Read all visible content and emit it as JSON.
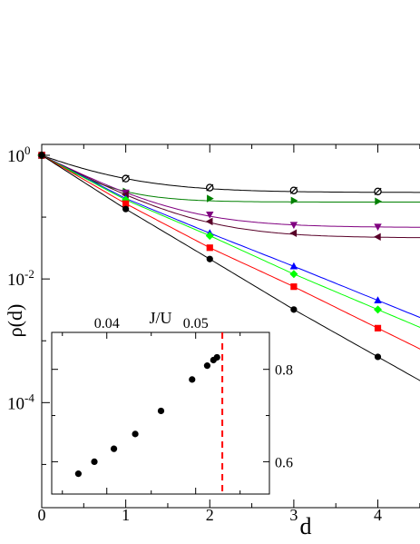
{
  "chart_data": [
    {
      "type": "line",
      "title": "",
      "xlabel": "d",
      "ylabel": "ρ(d)",
      "xscale": "linear",
      "yscale": "log",
      "xlim": [
        0,
        4.75
      ],
      "ylim": [
        2e-06,
        1.5
      ],
      "xticks": [
        0,
        1,
        2,
        3,
        4
      ],
      "xtick_labels": [
        "0",
        "1",
        "2",
        "3",
        "4"
      ],
      "yticks": [
        1,
        0.01,
        0.0001
      ],
      "ytick_labels": [
        {
          "base": "10",
          "exp": "0"
        },
        {
          "base": "10",
          "exp": "-2"
        },
        {
          "base": "10",
          "exp": "-4"
        }
      ],
      "grid": false,
      "legend": "none",
      "series": [
        {
          "color": "#000000",
          "marker": "circle-open-slash",
          "x": [
            0,
            1,
            2,
            3,
            4
          ],
          "y": [
            1,
            0.42,
            0.3,
            0.27,
            0.26
          ],
          "asymptote": 0.25
        },
        {
          "color": "#008000",
          "marker": "triangle-right",
          "x": [
            0,
            1,
            2,
            3,
            4
          ],
          "y": [
            1,
            0.26,
            0.2,
            0.185,
            0.18
          ],
          "asymptote": 0.175
        },
        {
          "color": "#800080",
          "marker": "triangle-down",
          "x": [
            0,
            1,
            2,
            3,
            4
          ],
          "y": [
            1,
            0.25,
            0.11,
            0.075,
            0.07
          ],
          "asymptote": 0.068
        },
        {
          "color": "#580028",
          "marker": "triangle-left",
          "x": [
            0,
            1,
            2,
            3,
            4
          ],
          "y": [
            1,
            0.23,
            0.085,
            0.055,
            0.048
          ],
          "asymptote": 0.046
        },
        {
          "color": "#0000ff",
          "marker": "triangle-up",
          "x": [
            0,
            1,
            2,
            3,
            4
          ],
          "y": [
            1,
            0.2,
            0.055,
            0.016,
            0.0045
          ],
          "asymptote": null
        },
        {
          "color": "#00ff00",
          "marker": "diamond",
          "x": [
            0,
            1,
            2,
            3,
            4
          ],
          "y": [
            1,
            0.19,
            0.05,
            0.012,
            0.0032
          ],
          "asymptote": null
        },
        {
          "color": "#ff0000",
          "marker": "square",
          "x": [
            0,
            1,
            2,
            3,
            4
          ],
          "y": [
            1,
            0.165,
            0.032,
            0.0075,
            0.0016
          ],
          "asymptote": null
        },
        {
          "color": "#000000",
          "marker": "circle",
          "x": [
            0,
            1,
            2,
            3,
            4
          ],
          "y": [
            1,
            0.135,
            0.021,
            0.0032,
            0.00055
          ],
          "asymptote": null
        }
      ]
    },
    {
      "type": "scatter",
      "title": "",
      "xlabel": "J/U",
      "ylabel": "",
      "xlim": [
        0.0338,
        0.0583
      ],
      "ylim": [
        0.53,
        0.88
      ],
      "xticks": [
        0.04,
        0.05
      ],
      "xtick_labels": [
        "0.04",
        "0.05"
      ],
      "yticks": [
        0.6,
        0.8
      ],
      "ytick_labels": [
        "0.6",
        "0.8"
      ],
      "x": [
        0.0368,
        0.0386,
        0.0408,
        0.0432,
        0.0461,
        0.0496,
        0.0513,
        0.052,
        0.0524
      ],
      "y": [
        0.574,
        0.6,
        0.628,
        0.66,
        0.71,
        0.778,
        0.808,
        0.82,
        0.826
      ],
      "vline": {
        "x": 0.053,
        "color": "#ff0000",
        "style": "dashed"
      },
      "markers": "filled-circle",
      "color": "#000000"
    }
  ]
}
